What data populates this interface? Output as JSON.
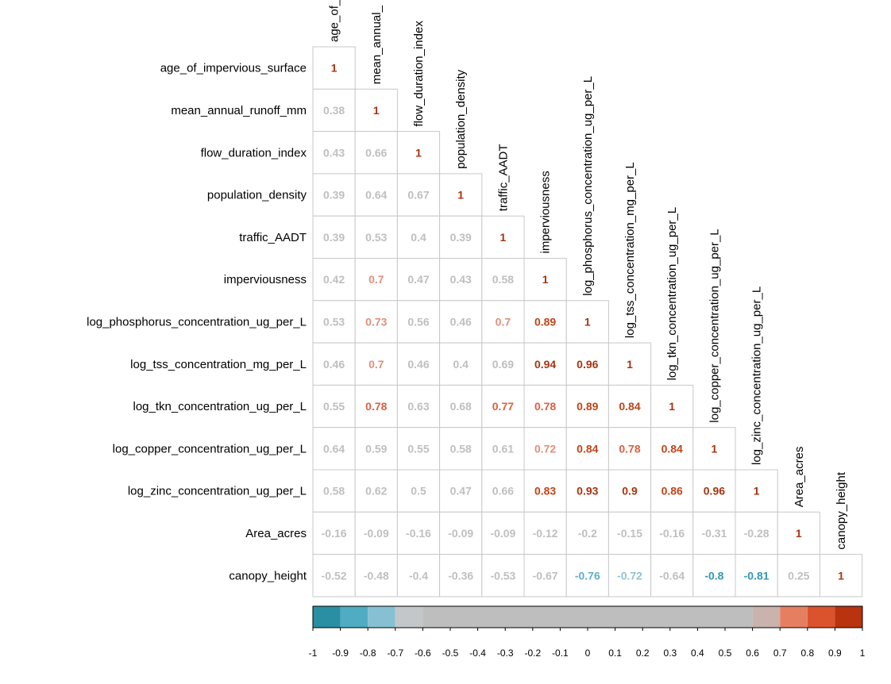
{
  "chart_data": {
    "type": "heatmap",
    "variables": [
      "age_of_impervious_surface",
      "mean_annual_runoff_mm",
      "flow_duration_index",
      "population_density",
      "traffic_AADT",
      "imperviousness",
      "log_phosphorus_concentration_ug_per_L",
      "log_tss_concentration_mg_per_L",
      "log_tkn_concentration_ug_per_L",
      "log_copper_concentration_ug_per_L",
      "log_zinc_concentration_ug_per_L",
      "Area_acres",
      "canopy_height"
    ],
    "column_labels": [
      "age_of_",
      "mean_annual_",
      "flow_duration_index",
      "population_density",
      "traffic_AADT",
      "imperviousness",
      "log_phosphorus_concentration_ug_per_L",
      "log_tss_concentration_mg_per_L",
      "log_tkn_concentration_ug_per_L",
      "log_copper_concentration_ug_per_L",
      "log_zinc_concentration_ug_per_L",
      "Area_acres",
      "canopy_height"
    ],
    "values": [
      [
        "1"
      ],
      [
        "0.38",
        "1"
      ],
      [
        "0.43",
        "0.66",
        "1"
      ],
      [
        "0.39",
        "0.64",
        "0.67",
        "1"
      ],
      [
        "0.39",
        "0.53",
        "0.4",
        "0.39",
        "1"
      ],
      [
        "0.42",
        "0.7",
        "0.47",
        "0.43",
        "0.58",
        "1"
      ],
      [
        "0.53",
        "0.73",
        "0.56",
        "0.46",
        "0.7",
        "0.89",
        "1"
      ],
      [
        "0.46",
        "0.7",
        "0.46",
        "0.4",
        "0.69",
        "0.94",
        "0.96",
        "1"
      ],
      [
        "0.55",
        "0.78",
        "0.63",
        "0.68",
        "0.77",
        "0.78",
        "0.89",
        "0.84",
        "1"
      ],
      [
        "0.64",
        "0.59",
        "0.55",
        "0.58",
        "0.61",
        "0.72",
        "0.84",
        "0.78",
        "0.84",
        "1"
      ],
      [
        "0.58",
        "0.62",
        "0.5",
        "0.47",
        "0.66",
        "0.83",
        "0.93",
        "0.9",
        "0.86",
        "0.96",
        "1"
      ],
      [
        "-0.16",
        "-0.09",
        "-0.16",
        "-0.09",
        "-0.09",
        "-0.12",
        "-0.2",
        "-0.15",
        "-0.16",
        "-0.31",
        "-0.28",
        "1"
      ],
      [
        "-0.52",
        "-0.48",
        "-0.4",
        "-0.36",
        "-0.53",
        "-0.67",
        "-0.76",
        "-0.72",
        "-0.64",
        "-0.8",
        "-0.81",
        "0.25",
        "1"
      ]
    ],
    "color_scale": {
      "range": [
        -1,
        1
      ],
      "ticks": [
        "-1",
        "-0.9",
        "-0.8",
        "-0.7",
        "-0.6",
        "-0.5",
        "-0.4",
        "-0.3",
        "-0.2",
        "-0.1",
        "0",
        "0.1",
        "0.2",
        "0.3",
        "0.4",
        "0.5",
        "0.6",
        "0.7",
        "0.8",
        "0.9",
        "1"
      ],
      "bins": [
        {
          "from": -1.0,
          "to": -0.9,
          "color": "#2b8fa3"
        },
        {
          "from": -0.9,
          "to": -0.8,
          "color": "#50acc3"
        },
        {
          "from": -0.8,
          "to": -0.7,
          "color": "#86c1d3"
        },
        {
          "from": -0.7,
          "to": -0.6,
          "color": "#c3c7ca"
        },
        {
          "from": -0.6,
          "to": 0.6,
          "color": "#bebebe"
        },
        {
          "from": 0.6,
          "to": 0.7,
          "color": "#c9b3ac"
        },
        {
          "from": 0.7,
          "to": 0.8,
          "color": "#e67f62"
        },
        {
          "from": 0.8,
          "to": 0.9,
          "color": "#db532c"
        },
        {
          "from": 0.9,
          "to": 1.0,
          "color": "#b9330e"
        }
      ]
    },
    "text_colors": {
      "neutral": "#bfbfbf",
      "light_positive": "#e0907a",
      "mid_positive": "#db6040",
      "high_positive": "#c04418",
      "top_positive": "#a83410",
      "light_negative": "#8ec4d3",
      "mid_negative": "#5eb0c8",
      "strong_negative": "#3497b2"
    },
    "grid": true,
    "layout_style": "lower-triangle",
    "title": "",
    "xlabel": "",
    "ylabel": ""
  }
}
